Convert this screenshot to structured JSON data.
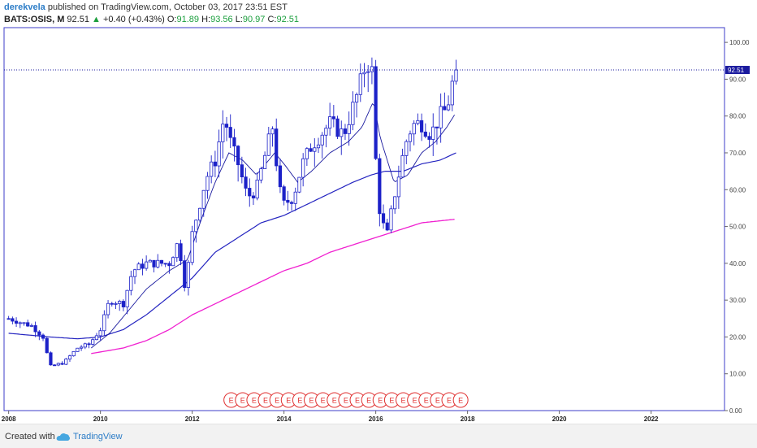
{
  "header": {
    "author": "derekvela",
    "published_text": "published on TradingView.com, October 03, 2017 23:51 EST",
    "symbol": "BATS:OSIS, M",
    "last": "92.51",
    "change_arrow": "▲",
    "change": "+0.40 (+0.43%)",
    "o_label": "O:",
    "o_value": "91.89",
    "h_label": "H:",
    "h_value": "93.56",
    "l_label": "L:",
    "l_value": "90.97",
    "c_label": "C:",
    "c_value": "92.51"
  },
  "footer": {
    "created_with": "Created with",
    "brand": "TradingView"
  },
  "colors": {
    "candle": "#1c21c8",
    "ma_short": "#1a1a9e",
    "ma_mid": "#2424c0",
    "ma_long": "#f020d0",
    "price_line": "#1a1a9e",
    "earnings": "#e03030",
    "frame": "#3c3cc8"
  },
  "chart_data": {
    "type": "candlestick",
    "interval": "monthly",
    "y_range": [
      0,
      104
    ],
    "y_ticks": [
      "0.00",
      "10.00",
      "20.00",
      "30.00",
      "40.00",
      "50.00",
      "60.00",
      "70.00",
      "80.00",
      "90.00",
      "100.00"
    ],
    "x_ticks": [
      "2008",
      "2010",
      "2012",
      "2014",
      "2016",
      "2018",
      "2020",
      "2022"
    ],
    "x_range": [
      2007.9,
      2023.6
    ],
    "last_price_label": "92.51",
    "last_price": 92.51,
    "earnings_label": "E",
    "earnings_dates": [
      2012.85,
      2013.1,
      2013.35,
      2013.6,
      2013.85,
      2014.1,
      2014.35,
      2014.6,
      2014.85,
      2015.1,
      2015.35,
      2015.6,
      2015.85,
      2016.1,
      2016.35,
      2016.6,
      2016.85,
      2017.1,
      2017.35,
      2017.6,
      2017.85
    ],
    "close_anchors": [
      [
        2008.0,
        25
      ],
      [
        2008.5,
        23
      ],
      [
        2008.75,
        20
      ],
      [
        2008.9,
        12
      ],
      [
        2009.2,
        13
      ],
      [
        2009.5,
        17
      ],
      [
        2009.75,
        18
      ],
      [
        2010.0,
        22
      ],
      [
        2010.2,
        30
      ],
      [
        2010.5,
        29
      ],
      [
        2010.7,
        38
      ],
      [
        2011.0,
        40
      ],
      [
        2011.5,
        40
      ],
      [
        2011.7,
        46
      ],
      [
        2011.85,
        33
      ],
      [
        2012.0,
        48
      ],
      [
        2012.3,
        63
      ],
      [
        2012.5,
        68
      ],
      [
        2012.7,
        80
      ],
      [
        2012.85,
        72
      ],
      [
        2013.0,
        67
      ],
      [
        2013.2,
        58
      ],
      [
        2013.4,
        60
      ],
      [
        2013.6,
        70
      ],
      [
        2013.75,
        77
      ],
      [
        2013.9,
        60
      ],
      [
        2014.0,
        56
      ],
      [
        2014.2,
        58
      ],
      [
        2014.4,
        67
      ],
      [
        2014.6,
        72
      ],
      [
        2014.8,
        75
      ],
      [
        2015.0,
        78
      ],
      [
        2015.3,
        75
      ],
      [
        2015.6,
        86
      ],
      [
        2015.8,
        95
      ],
      [
        2015.92,
        92
      ],
      [
        2016.0,
        68
      ],
      [
        2016.1,
        52
      ],
      [
        2016.25,
        48
      ],
      [
        2016.4,
        58
      ],
      [
        2016.55,
        67
      ],
      [
        2016.7,
        75
      ],
      [
        2016.85,
        78
      ],
      [
        2017.0,
        78
      ],
      [
        2017.2,
        75
      ],
      [
        2017.4,
        80
      ],
      [
        2017.55,
        82
      ],
      [
        2017.65,
        88
      ],
      [
        2017.75,
        92.51
      ]
    ],
    "ma_short_anchors": [
      [
        2009.8,
        17
      ],
      [
        2010.2,
        21
      ],
      [
        2010.6,
        27
      ],
      [
        2011.0,
        33
      ],
      [
        2011.5,
        38
      ],
      [
        2011.9,
        41
      ],
      [
        2012.2,
        52
      ],
      [
        2012.5,
        62
      ],
      [
        2012.8,
        70
      ],
      [
        2013.1,
        68
      ],
      [
        2013.4,
        64
      ],
      [
        2013.8,
        70
      ],
      [
        2014.0,
        67
      ],
      [
        2014.3,
        62
      ],
      [
        2014.6,
        65
      ],
      [
        2015.0,
        70
      ],
      [
        2015.4,
        73
      ],
      [
        2015.7,
        77
      ],
      [
        2015.95,
        84
      ],
      [
        2016.1,
        74
      ],
      [
        2016.4,
        62
      ],
      [
        2016.7,
        64
      ],
      [
        2017.0,
        70
      ],
      [
        2017.3,
        73
      ],
      [
        2017.55,
        77
      ],
      [
        2017.75,
        81
      ]
    ],
    "ma_mid_anchors": [
      [
        2008.0,
        21
      ],
      [
        2008.9,
        20
      ],
      [
        2009.5,
        19.5
      ],
      [
        2010.0,
        20
      ],
      [
        2010.5,
        22
      ],
      [
        2011.0,
        26
      ],
      [
        2011.5,
        31
      ],
      [
        2012.0,
        36
      ],
      [
        2012.5,
        43
      ],
      [
        2013.0,
        47
      ],
      [
        2013.5,
        51
      ],
      [
        2014.0,
        53
      ],
      [
        2014.5,
        56
      ],
      [
        2015.0,
        59
      ],
      [
        2015.5,
        62
      ],
      [
        2015.9,
        64
      ],
      [
        2016.2,
        65
      ],
      [
        2016.6,
        65
      ],
      [
        2017.0,
        67
      ],
      [
        2017.4,
        68
      ],
      [
        2017.75,
        70
      ]
    ],
    "ma_long_anchors": [
      [
        2009.8,
        15.5
      ],
      [
        2010.5,
        17
      ],
      [
        2011.0,
        19
      ],
      [
        2011.5,
        22
      ],
      [
        2012.0,
        26
      ],
      [
        2012.5,
        29
      ],
      [
        2013.0,
        32
      ],
      [
        2013.5,
        35
      ],
      [
        2014.0,
        38
      ],
      [
        2014.5,
        40
      ],
      [
        2015.0,
        43
      ],
      [
        2015.5,
        45
      ],
      [
        2016.0,
        47
      ],
      [
        2016.5,
        49
      ],
      [
        2017.0,
        51
      ],
      [
        2017.75,
        52
      ]
    ]
  }
}
